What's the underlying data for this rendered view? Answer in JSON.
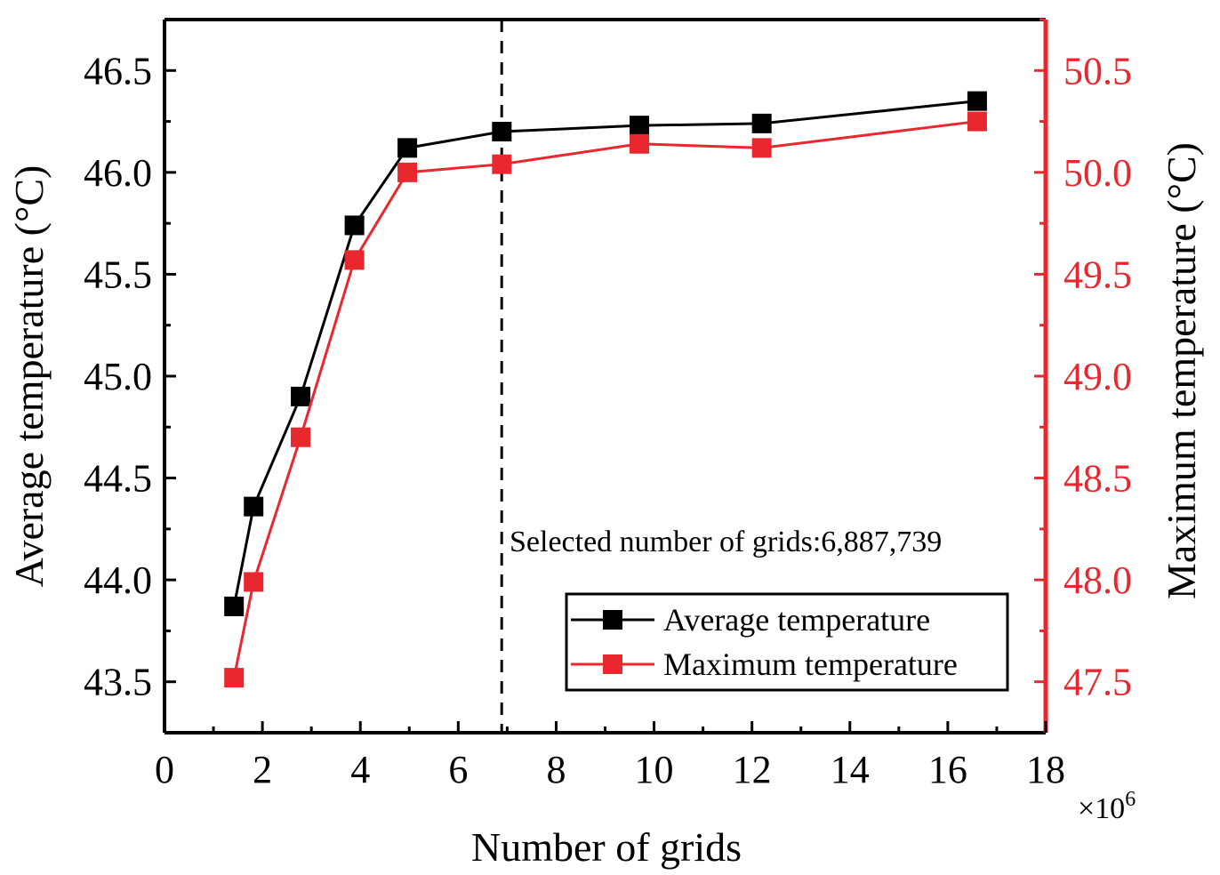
{
  "chart_data": {
    "type": "line",
    "x_label": "Number of grids",
    "x_multiplier": "×10",
    "x_multiplier_exp": "6",
    "y_left_label": "Average temperature (°C)",
    "y_right_label": "Maximum temperature (°C)",
    "xlim": [
      0,
      18
    ],
    "ylim_left": [
      43.25,
      46.75
    ],
    "ylim_right": [
      47.25,
      50.75
    ],
    "x_ticks": [
      0,
      2,
      4,
      6,
      8,
      10,
      12,
      14,
      16,
      18
    ],
    "x_tick_labels": [
      "0",
      "2",
      "4",
      "6",
      "8",
      "10",
      "12",
      "14",
      "16",
      "18"
    ],
    "y_left_ticks": [
      43.5,
      44.0,
      44.5,
      45.0,
      45.5,
      46.0,
      46.5
    ],
    "y_left_tick_labels": [
      "43.5",
      "44.0",
      "44.5",
      "45.0",
      "45.5",
      "46.0",
      "46.5"
    ],
    "y_right_ticks": [
      47.5,
      48.0,
      48.5,
      49.0,
      49.5,
      50.0,
      50.5
    ],
    "y_right_tick_labels": [
      "47.5",
      "48.0",
      "48.5",
      "49.0",
      "49.5",
      "50.0",
      "50.5"
    ],
    "series": [
      {
        "name": "Average temperature",
        "axis": "left",
        "color": "#000000",
        "x": [
          1.42,
          1.82,
          2.78,
          3.88,
          4.96,
          6.89,
          9.7,
          12.2,
          16.6
        ],
        "y": [
          43.87,
          44.36,
          44.9,
          45.74,
          46.12,
          46.2,
          46.23,
          46.24,
          46.35
        ]
      },
      {
        "name": "Maximum temperature",
        "axis": "right",
        "color": "#e8282e",
        "x": [
          1.42,
          1.82,
          2.78,
          3.88,
          4.96,
          6.89,
          9.7,
          12.2,
          16.6
        ],
        "y": [
          47.52,
          47.99,
          48.7,
          49.57,
          50.0,
          50.04,
          50.14,
          50.12,
          50.25
        ]
      }
    ],
    "reference_line": {
      "x": 6.887739,
      "style": "dashed"
    },
    "annotation": "Selected number of grids:6,887,739",
    "legend": {
      "position": "lower-right",
      "entries": [
        "Average temperature",
        "Maximum temperature"
      ]
    }
  },
  "colors": {
    "left_axis": "#000000",
    "right_axis": "#e8282e"
  }
}
